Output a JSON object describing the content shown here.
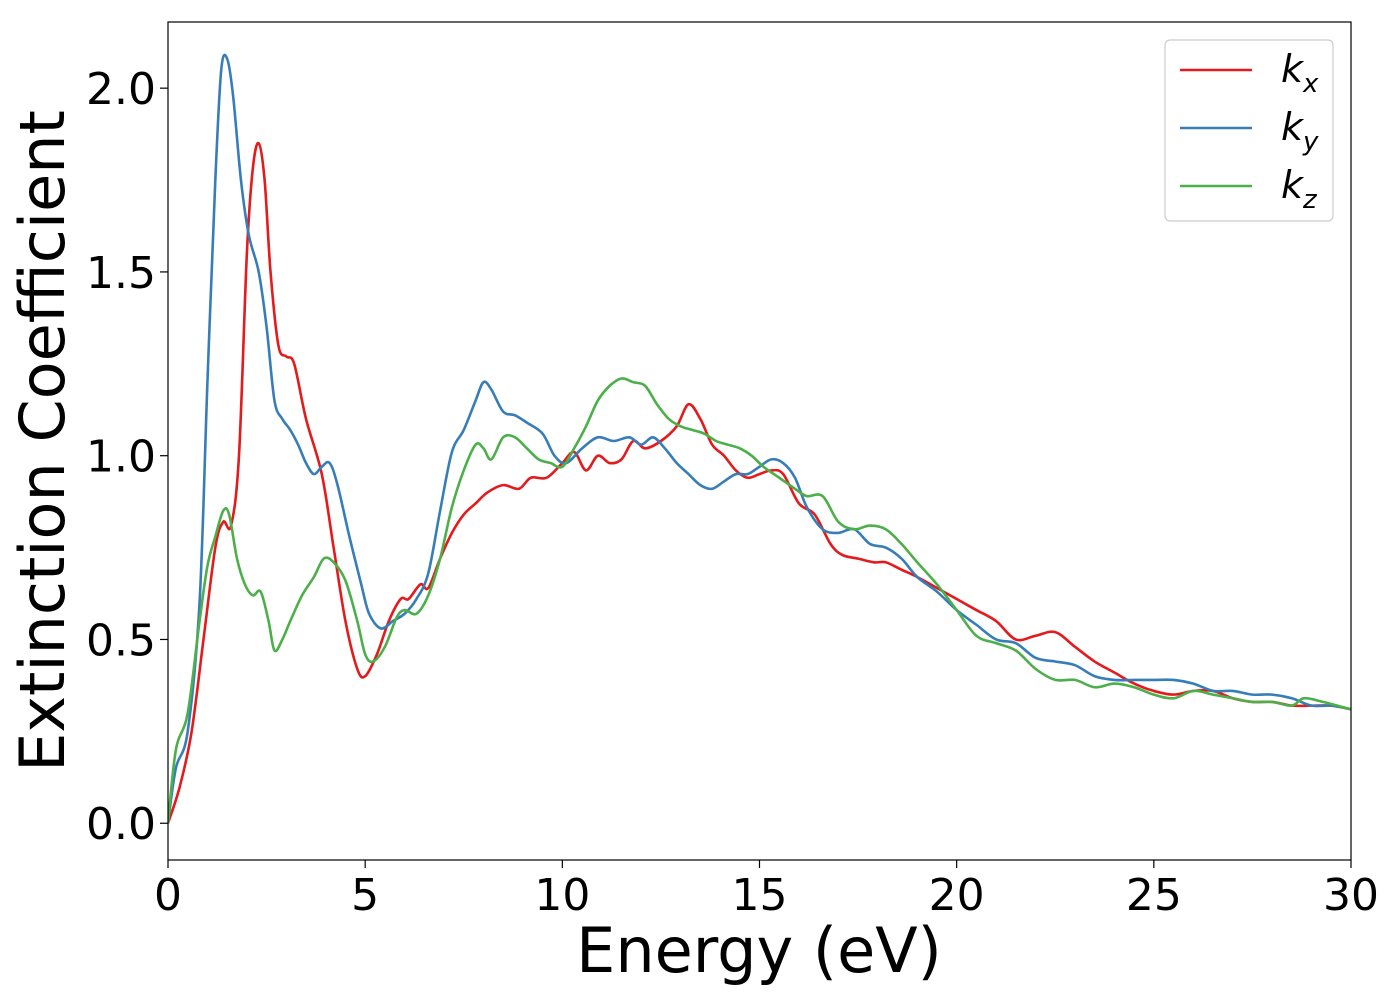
{
  "chart_data": {
    "type": "line",
    "title": "",
    "xlabel": "Energy (eV)",
    "ylabel": "Extinction Coefficient",
    "xlim": [
      0,
      30
    ],
    "ylim": [
      -0.1,
      2.18
    ],
    "xticks": [
      0,
      5,
      10,
      15,
      20,
      25,
      30
    ],
    "xtick_labels": [
      "0",
      "5",
      "10",
      "15",
      "20",
      "25",
      "30"
    ],
    "yticks": [
      0.0,
      0.5,
      1.0,
      1.5,
      2.0
    ],
    "ytick_labels": [
      "0.0",
      "0.5",
      "1.0",
      "1.5",
      "2.0"
    ],
    "grid": false,
    "legend_position": "top-right",
    "series": [
      {
        "label_main": "k",
        "label_sub": "x",
        "color": "#e41a1c",
        "points": [
          [
            0,
            0
          ],
          [
            0.3,
            0.1
          ],
          [
            0.6,
            0.25
          ],
          [
            0.9,
            0.5
          ],
          [
            1.2,
            0.75
          ],
          [
            1.4,
            0.82
          ],
          [
            1.6,
            0.81
          ],
          [
            1.8,
            1.0
          ],
          [
            2.0,
            1.55
          ],
          [
            2.15,
            1.78
          ],
          [
            2.3,
            1.85
          ],
          [
            2.45,
            1.75
          ],
          [
            2.6,
            1.5
          ],
          [
            2.8,
            1.3
          ],
          [
            3.0,
            1.27
          ],
          [
            3.2,
            1.25
          ],
          [
            3.5,
            1.1
          ],
          [
            3.9,
            0.95
          ],
          [
            4.2,
            0.75
          ],
          [
            4.5,
            0.55
          ],
          [
            4.8,
            0.42
          ],
          [
            5.0,
            0.4
          ],
          [
            5.3,
            0.46
          ],
          [
            5.6,
            0.55
          ],
          [
            5.9,
            0.61
          ],
          [
            6.1,
            0.61
          ],
          [
            6.4,
            0.65
          ],
          [
            6.6,
            0.64
          ],
          [
            6.9,
            0.72
          ],
          [
            7.2,
            0.79
          ],
          [
            7.5,
            0.84
          ],
          [
            7.8,
            0.87
          ],
          [
            8.1,
            0.9
          ],
          [
            8.5,
            0.92
          ],
          [
            8.9,
            0.91
          ],
          [
            9.2,
            0.94
          ],
          [
            9.6,
            0.94
          ],
          [
            10.0,
            0.98
          ],
          [
            10.3,
            1.01
          ],
          [
            10.6,
            0.96
          ],
          [
            10.9,
            1.0
          ],
          [
            11.2,
            0.98
          ],
          [
            11.5,
            0.99
          ],
          [
            11.8,
            1.04
          ],
          [
            12.1,
            1.02
          ],
          [
            12.5,
            1.04
          ],
          [
            12.9,
            1.08
          ],
          [
            13.2,
            1.14
          ],
          [
            13.5,
            1.1
          ],
          [
            13.8,
            1.03
          ],
          [
            14.1,
            1.0
          ],
          [
            14.4,
            0.96
          ],
          [
            14.7,
            0.94
          ],
          [
            15.0,
            0.95
          ],
          [
            15.3,
            0.96
          ],
          [
            15.6,
            0.95
          ],
          [
            16.0,
            0.87
          ],
          [
            16.4,
            0.84
          ],
          [
            16.8,
            0.76
          ],
          [
            17.1,
            0.73
          ],
          [
            17.5,
            0.72
          ],
          [
            17.9,
            0.71
          ],
          [
            18.2,
            0.71
          ],
          [
            18.6,
            0.69
          ],
          [
            19.0,
            0.67
          ],
          [
            19.5,
            0.64
          ],
          [
            20.0,
            0.61
          ],
          [
            20.5,
            0.58
          ],
          [
            21.0,
            0.55
          ],
          [
            21.5,
            0.5
          ],
          [
            22.0,
            0.51
          ],
          [
            22.5,
            0.52
          ],
          [
            23.0,
            0.48
          ],
          [
            23.5,
            0.44
          ],
          [
            24.0,
            0.41
          ],
          [
            24.5,
            0.38
          ],
          [
            25.0,
            0.36
          ],
          [
            25.5,
            0.35
          ],
          [
            26.0,
            0.36
          ],
          [
            26.5,
            0.36
          ],
          [
            27.0,
            0.34
          ],
          [
            27.5,
            0.33
          ],
          [
            28.0,
            0.33
          ],
          [
            28.5,
            0.32
          ],
          [
            29.0,
            0.32
          ],
          [
            29.5,
            0.32
          ],
          [
            30.0,
            0.31
          ]
        ]
      },
      {
        "label_main": "k",
        "label_sub": "y",
        "color": "#377eb8",
        "points": [
          [
            0,
            0
          ],
          [
            0.2,
            0.15
          ],
          [
            0.5,
            0.25
          ],
          [
            0.8,
            0.6
          ],
          [
            1.0,
            1.2
          ],
          [
            1.2,
            1.75
          ],
          [
            1.35,
            2.05
          ],
          [
            1.5,
            2.08
          ],
          [
            1.65,
            1.98
          ],
          [
            1.85,
            1.75
          ],
          [
            2.05,
            1.6
          ],
          [
            2.3,
            1.5
          ],
          [
            2.5,
            1.35
          ],
          [
            2.7,
            1.15
          ],
          [
            2.9,
            1.1
          ],
          [
            3.1,
            1.07
          ],
          [
            3.3,
            1.03
          ],
          [
            3.5,
            0.98
          ],
          [
            3.7,
            0.95
          ],
          [
            3.9,
            0.97
          ],
          [
            4.1,
            0.98
          ],
          [
            4.3,
            0.92
          ],
          [
            4.6,
            0.78
          ],
          [
            4.9,
            0.65
          ],
          [
            5.1,
            0.57
          ],
          [
            5.4,
            0.53
          ],
          [
            5.7,
            0.55
          ],
          [
            6.0,
            0.57
          ],
          [
            6.3,
            0.61
          ],
          [
            6.6,
            0.68
          ],
          [
            6.9,
            0.85
          ],
          [
            7.2,
            1.01
          ],
          [
            7.5,
            1.07
          ],
          [
            7.8,
            1.15
          ],
          [
            8.0,
            1.2
          ],
          [
            8.2,
            1.18
          ],
          [
            8.5,
            1.12
          ],
          [
            8.8,
            1.11
          ],
          [
            9.1,
            1.09
          ],
          [
            9.5,
            1.06
          ],
          [
            9.8,
            1.0
          ],
          [
            10.1,
            0.98
          ],
          [
            10.5,
            1.02
          ],
          [
            10.9,
            1.05
          ],
          [
            11.3,
            1.04
          ],
          [
            11.7,
            1.05
          ],
          [
            12.0,
            1.03
          ],
          [
            12.3,
            1.05
          ],
          [
            12.6,
            1.02
          ],
          [
            12.9,
            0.98
          ],
          [
            13.2,
            0.95
          ],
          [
            13.5,
            0.92
          ],
          [
            13.8,
            0.91
          ],
          [
            14.1,
            0.93
          ],
          [
            14.4,
            0.95
          ],
          [
            14.7,
            0.95
          ],
          [
            15.0,
            0.97
          ],
          [
            15.3,
            0.99
          ],
          [
            15.6,
            0.98
          ],
          [
            15.9,
            0.94
          ],
          [
            16.2,
            0.86
          ],
          [
            16.6,
            0.8
          ],
          [
            17.0,
            0.79
          ],
          [
            17.4,
            0.8
          ],
          [
            17.8,
            0.76
          ],
          [
            18.2,
            0.75
          ],
          [
            18.6,
            0.72
          ],
          [
            19.0,
            0.67
          ],
          [
            19.5,
            0.63
          ],
          [
            20.0,
            0.58
          ],
          [
            20.5,
            0.54
          ],
          [
            21.0,
            0.5
          ],
          [
            21.5,
            0.49
          ],
          [
            22.0,
            0.45
          ],
          [
            22.5,
            0.44
          ],
          [
            23.0,
            0.43
          ],
          [
            23.5,
            0.4
          ],
          [
            24.0,
            0.39
          ],
          [
            24.5,
            0.39
          ],
          [
            25.0,
            0.39
          ],
          [
            25.5,
            0.39
          ],
          [
            26.0,
            0.38
          ],
          [
            26.5,
            0.36
          ],
          [
            27.0,
            0.36
          ],
          [
            27.5,
            0.35
          ],
          [
            28.0,
            0.35
          ],
          [
            28.5,
            0.34
          ],
          [
            29.0,
            0.32
          ],
          [
            29.5,
            0.32
          ],
          [
            30.0,
            0.31
          ]
        ]
      },
      {
        "label_main": "k",
        "label_sub": "z",
        "color": "#4daf4a",
        "points": [
          [
            0,
            0
          ],
          [
            0.2,
            0.2
          ],
          [
            0.5,
            0.3
          ],
          [
            0.8,
            0.55
          ],
          [
            1.0,
            0.7
          ],
          [
            1.2,
            0.78
          ],
          [
            1.4,
            0.85
          ],
          [
            1.55,
            0.84
          ],
          [
            1.75,
            0.72
          ],
          [
            1.95,
            0.65
          ],
          [
            2.15,
            0.62
          ],
          [
            2.35,
            0.63
          ],
          [
            2.55,
            0.55
          ],
          [
            2.7,
            0.47
          ],
          [
            2.9,
            0.5
          ],
          [
            3.1,
            0.55
          ],
          [
            3.4,
            0.62
          ],
          [
            3.7,
            0.67
          ],
          [
            3.95,
            0.72
          ],
          [
            4.2,
            0.71
          ],
          [
            4.5,
            0.66
          ],
          [
            4.8,
            0.55
          ],
          [
            5.0,
            0.46
          ],
          [
            5.2,
            0.44
          ],
          [
            5.5,
            0.48
          ],
          [
            5.8,
            0.56
          ],
          [
            6.0,
            0.58
          ],
          [
            6.3,
            0.57
          ],
          [
            6.6,
            0.62
          ],
          [
            6.9,
            0.72
          ],
          [
            7.2,
            0.86
          ],
          [
            7.5,
            0.96
          ],
          [
            7.8,
            1.03
          ],
          [
            8.0,
            1.02
          ],
          [
            8.2,
            0.99
          ],
          [
            8.5,
            1.05
          ],
          [
            8.8,
            1.05
          ],
          [
            9.1,
            1.02
          ],
          [
            9.4,
            0.99
          ],
          [
            9.7,
            0.98
          ],
          [
            10.0,
            0.97
          ],
          [
            10.3,
            1.02
          ],
          [
            10.6,
            1.08
          ],
          [
            10.9,
            1.15
          ],
          [
            11.2,
            1.19
          ],
          [
            11.5,
            1.21
          ],
          [
            11.8,
            1.2
          ],
          [
            12.1,
            1.19
          ],
          [
            12.4,
            1.14
          ],
          [
            12.7,
            1.1
          ],
          [
            13.0,
            1.08
          ],
          [
            13.3,
            1.07
          ],
          [
            13.6,
            1.06
          ],
          [
            13.9,
            1.04
          ],
          [
            14.2,
            1.03
          ],
          [
            14.5,
            1.02
          ],
          [
            14.8,
            1.0
          ],
          [
            15.1,
            0.97
          ],
          [
            15.5,
            0.94
          ],
          [
            15.9,
            0.91
          ],
          [
            16.2,
            0.89
          ],
          [
            16.6,
            0.89
          ],
          [
            17.0,
            0.82
          ],
          [
            17.4,
            0.8
          ],
          [
            17.8,
            0.81
          ],
          [
            18.2,
            0.8
          ],
          [
            18.6,
            0.76
          ],
          [
            19.0,
            0.71
          ],
          [
            19.5,
            0.65
          ],
          [
            20.0,
            0.58
          ],
          [
            20.5,
            0.51
          ],
          [
            21.0,
            0.49
          ],
          [
            21.5,
            0.47
          ],
          [
            22.0,
            0.42
          ],
          [
            22.5,
            0.39
          ],
          [
            23.0,
            0.39
          ],
          [
            23.5,
            0.37
          ],
          [
            24.0,
            0.38
          ],
          [
            24.5,
            0.37
          ],
          [
            25.0,
            0.35
          ],
          [
            25.5,
            0.34
          ],
          [
            26.0,
            0.36
          ],
          [
            26.5,
            0.35
          ],
          [
            27.0,
            0.34
          ],
          [
            27.5,
            0.33
          ],
          [
            28.0,
            0.33
          ],
          [
            28.5,
            0.32
          ],
          [
            28.8,
            0.34
          ],
          [
            29.3,
            0.33
          ],
          [
            30.0,
            0.31
          ]
        ]
      }
    ]
  }
}
